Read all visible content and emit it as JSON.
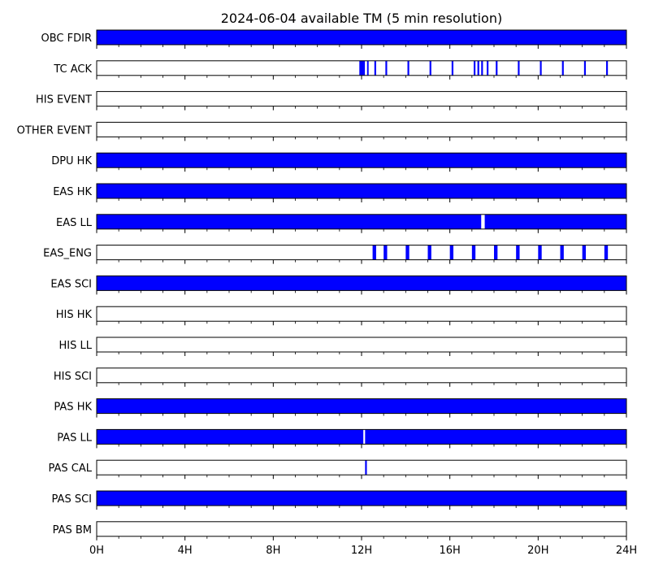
{
  "chart_data": {
    "type": "timeline",
    "title": "2024-06-04 available TM (5 min resolution)",
    "x_unit": "hours",
    "xlim": [
      0,
      24
    ],
    "x_tick_values": [
      0,
      4,
      8,
      12,
      16,
      20,
      24
    ],
    "x_tick_labels": [
      "0H",
      "4H",
      "8H",
      "12H",
      "16H",
      "20H",
      "24H"
    ],
    "x_minor_step": 1,
    "bar_color": "#0000ff",
    "rows": [
      {
        "label": "OBC FDIR",
        "intervals": [
          [
            0,
            24
          ]
        ]
      },
      {
        "label": "TC ACK",
        "intervals": [
          [
            11.9,
            12.15
          ],
          [
            12.25,
            12.32
          ],
          [
            12.58,
            12.66
          ],
          [
            13.08,
            13.16
          ],
          [
            14.08,
            14.16
          ],
          [
            15.08,
            15.16
          ],
          [
            16.08,
            16.16
          ],
          [
            17.08,
            17.16
          ],
          [
            17.25,
            17.33
          ],
          [
            17.42,
            17.5
          ],
          [
            17.67,
            17.75
          ],
          [
            18.08,
            18.16
          ],
          [
            19.08,
            19.16
          ],
          [
            20.08,
            20.16
          ],
          [
            21.08,
            21.16
          ],
          [
            22.08,
            22.16
          ],
          [
            23.08,
            23.16
          ]
        ]
      },
      {
        "label": "HIS EVENT",
        "intervals": []
      },
      {
        "label": "OTHER EVENT",
        "intervals": []
      },
      {
        "label": "DPU HK",
        "intervals": [
          [
            0,
            24
          ]
        ]
      },
      {
        "label": "EAS HK",
        "intervals": [
          [
            0,
            24
          ]
        ]
      },
      {
        "label": "EAS LL",
        "intervals": [
          [
            0,
            17.42
          ],
          [
            17.58,
            24
          ]
        ]
      },
      {
        "label": "EAS_ENG",
        "intervals": [
          [
            12.5,
            12.66
          ],
          [
            13.0,
            13.16
          ],
          [
            14.0,
            14.16
          ],
          [
            15.0,
            15.16
          ],
          [
            16.0,
            16.16
          ],
          [
            17.0,
            17.16
          ],
          [
            18.0,
            18.16
          ],
          [
            19.0,
            19.16
          ],
          [
            20.0,
            20.16
          ],
          [
            21.0,
            21.16
          ],
          [
            22.0,
            22.16
          ],
          [
            23.0,
            23.16
          ]
        ]
      },
      {
        "label": "EAS SCI",
        "intervals": [
          [
            0,
            24
          ]
        ]
      },
      {
        "label": "HIS HK",
        "intervals": []
      },
      {
        "label": "HIS LL",
        "intervals": []
      },
      {
        "label": "HIS SCI",
        "intervals": []
      },
      {
        "label": "PAS HK",
        "intervals": [
          [
            0,
            24
          ]
        ]
      },
      {
        "label": "PAS LL",
        "intervals": [
          [
            0,
            12.08
          ],
          [
            12.16,
            24
          ]
        ]
      },
      {
        "label": "PAS CAL",
        "intervals": [
          [
            12.16,
            12.24
          ]
        ]
      },
      {
        "label": "PAS SCI",
        "intervals": [
          [
            0,
            24
          ]
        ]
      },
      {
        "label": "PAS BM",
        "intervals": []
      }
    ]
  }
}
